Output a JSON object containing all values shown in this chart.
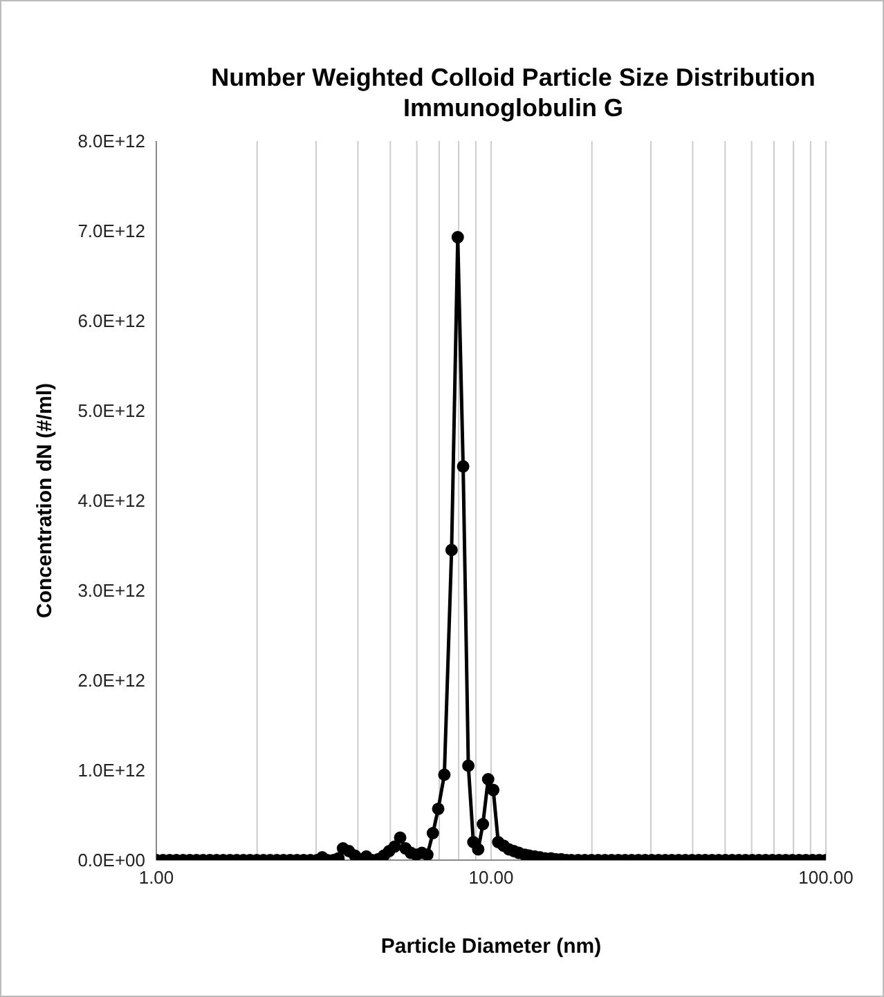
{
  "chart_data": {
    "type": "line",
    "title": "Number Weighted Colloid Particle Size Distribution",
    "subtitle": "Immunoglobulin G",
    "xlabel": "Particle Diameter (nm)",
    "ylabel": "Concentration dN (#/ml)",
    "log": "x",
    "grid": "x",
    "marker": "circle",
    "line_style": "solid",
    "xlim": [
      1,
      100
    ],
    "xticks": [
      {
        "value": 1,
        "label": "1.00"
      },
      {
        "value": 2,
        "label": null
      },
      {
        "value": 3,
        "label": null
      },
      {
        "value": 4,
        "label": null
      },
      {
        "value": 5,
        "label": null
      },
      {
        "value": 6,
        "label": null
      },
      {
        "value": 7,
        "label": null
      },
      {
        "value": 8,
        "label": null
      },
      {
        "value": 9,
        "label": null
      },
      {
        "value": 10,
        "label": "10.00"
      },
      {
        "value": 20,
        "label": null
      },
      {
        "value": 30,
        "label": null
      },
      {
        "value": 40,
        "label": null
      },
      {
        "value": 50,
        "label": null
      },
      {
        "value": 60,
        "label": null
      },
      {
        "value": 70,
        "label": null
      },
      {
        "value": 80,
        "label": null
      },
      {
        "value": 90,
        "label": null
      },
      {
        "value": 100,
        "label": "100.00"
      }
    ],
    "ylim": [
      0,
      8000000000000
    ],
    "yticks": [
      {
        "value": 0,
        "label": "0.0E+00"
      },
      {
        "value": 1000000000000,
        "label": "1.0E+12"
      },
      {
        "value": 2000000000000,
        "label": "2.0E+12"
      },
      {
        "value": 3000000000000,
        "label": "3.0E+12"
      },
      {
        "value": 4000000000000,
        "label": "4.0E+12"
      },
      {
        "value": 5000000000000,
        "label": "5.0E+12"
      },
      {
        "value": 6000000000000,
        "label": "6.0E+12"
      },
      {
        "value": 7000000000000,
        "label": "7.0E+12"
      },
      {
        "value": 8000000000000,
        "label": "8.0E+12"
      }
    ],
    "series": [
      {
        "color": "#000000",
        "x": [
          1.0,
          1.047,
          1.096,
          1.148,
          1.202,
          1.259,
          1.318,
          1.38,
          1.445,
          1.514,
          1.585,
          1.66,
          1.738,
          1.82,
          1.905,
          1.995,
          2.089,
          2.188,
          2.291,
          2.399,
          2.512,
          2.63,
          2.754,
          2.884,
          3.02,
          3.13,
          3.24,
          3.38,
          3.5,
          3.61,
          3.76,
          3.92,
          4.09,
          4.24,
          4.41,
          4.6,
          4.78,
          4.96,
          5.15,
          5.35,
          5.55,
          5.76,
          5.98,
          6.21,
          6.45,
          6.7,
          6.95,
          7.25,
          7.62,
          7.95,
          8.25,
          8.55,
          8.85,
          9.15,
          9.45,
          9.8,
          10.15,
          10.5,
          10.9,
          11.3,
          11.7,
          12.1,
          12.6,
          13.0,
          13.5,
          14.0,
          14.5,
          15.1,
          15.6,
          16.2,
          16.8,
          17.38,
          18.2,
          19.05,
          19.95,
          20.89,
          21.88,
          22.91,
          23.99,
          25.12,
          26.3,
          27.54,
          28.84,
          30.2,
          31.62,
          33.11,
          34.67,
          36.31,
          38.02,
          39.81,
          41.69,
          43.65,
          45.71,
          47.86,
          50.12,
          52.48,
          54.95,
          57.54,
          60.26,
          63.1,
          66.07,
          69.18,
          72.44,
          75.86,
          79.43,
          83.18,
          87.1,
          91.2,
          95.5,
          100
        ],
        "values": [
          0,
          0,
          0,
          0,
          0,
          0,
          0,
          0,
          0,
          0,
          0,
          0,
          0,
          0,
          0,
          0,
          0,
          0,
          0,
          0,
          0,
          0,
          0,
          0,
          0,
          30000000000.0,
          0,
          0,
          20000000000.0,
          130000000000.0,
          100000000000.0,
          50000000000.0,
          10000000000.0,
          40000000000.0,
          0,
          10000000000.0,
          50000000000.0,
          100000000000.0,
          150000000000.0,
          250000000000.0,
          130000000000.0,
          80000000000.0,
          60000000000.0,
          80000000000.0,
          60000000000.0,
          300000000000.0,
          570000000000.0,
          950000000000.0,
          3450000000000.0,
          6930000000000.0,
          4380000000000.0,
          1050000000000.0,
          200000000000.0,
          120000000000.0,
          400000000000.0,
          900000000000.0,
          780000000000.0,
          200000000000.0,
          160000000000.0,
          120000000000.0,
          100000000000.0,
          80000000000.0,
          60000000000.0,
          50000000000.0,
          40000000000.0,
          30000000000.0,
          20000000000.0,
          20000000000.0,
          10000000000.0,
          10000000000.0,
          0,
          0,
          0,
          0,
          0,
          0,
          0,
          0,
          0,
          0,
          0,
          0,
          0,
          0,
          0,
          0,
          0,
          0,
          0,
          0,
          0,
          0,
          0,
          0,
          0,
          0,
          0,
          0,
          0,
          0,
          0,
          0,
          0,
          0,
          0,
          0,
          0,
          0,
          0,
          0
        ]
      }
    ]
  }
}
